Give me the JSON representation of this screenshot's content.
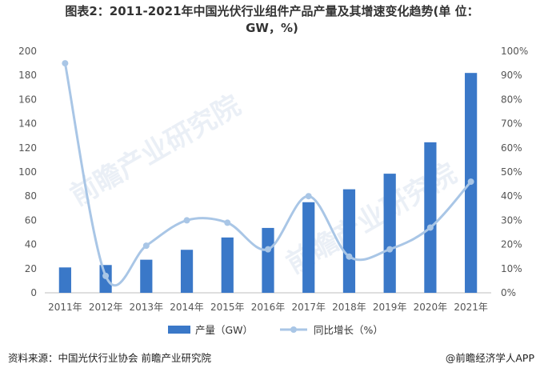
{
  "title_line1": "图表2：2011-2021年中国光伏行业组件产品产量及其增速变化趋势(单 位：",
  "title_line2": "GW，%)",
  "source": "资料来源：中国光伏行业协会 前瞻产业研究院",
  "credit": "@前瞻经济学人APP",
  "watermark": "前瞻产业研究院",
  "colors": {
    "bar": "#3a78c8",
    "line": "#a9c6e6",
    "axis_text": "#555555",
    "grid": "#d9d9d9"
  },
  "chart_data": {
    "type": "bar",
    "categories": [
      "2011年",
      "2012年",
      "2013年",
      "2014年",
      "2015年",
      "2016年",
      "2017年",
      "2018年",
      "2019年",
      "2020年",
      "2021年"
    ],
    "series": [
      {
        "name": "产量（GW）",
        "type": "bar",
        "axis": "left",
        "values": [
          21,
          23,
          27.4,
          35.6,
          45.8,
          53.7,
          75,
          85.7,
          98.6,
          124.6,
          182
        ]
      },
      {
        "name": "同比增长（%）",
        "type": "line",
        "axis": "right",
        "values": [
          95,
          7,
          19.5,
          30,
          29,
          18,
          40,
          15,
          18,
          27,
          46
        ]
      }
    ],
    "left_axis": {
      "min": 0,
      "max": 200,
      "ticks": [
        "0",
        "20",
        "40",
        "60",
        "80",
        "100",
        "120",
        "140",
        "160",
        "180",
        "200"
      ]
    },
    "right_axis": {
      "min": 0,
      "max": 100,
      "ticks": [
        "0%",
        "10%",
        "20%",
        "30%",
        "40%",
        "50%",
        "60%",
        "70%",
        "80%",
        "90%",
        "100%"
      ]
    },
    "legend": "bottom",
    "grid": false
  }
}
